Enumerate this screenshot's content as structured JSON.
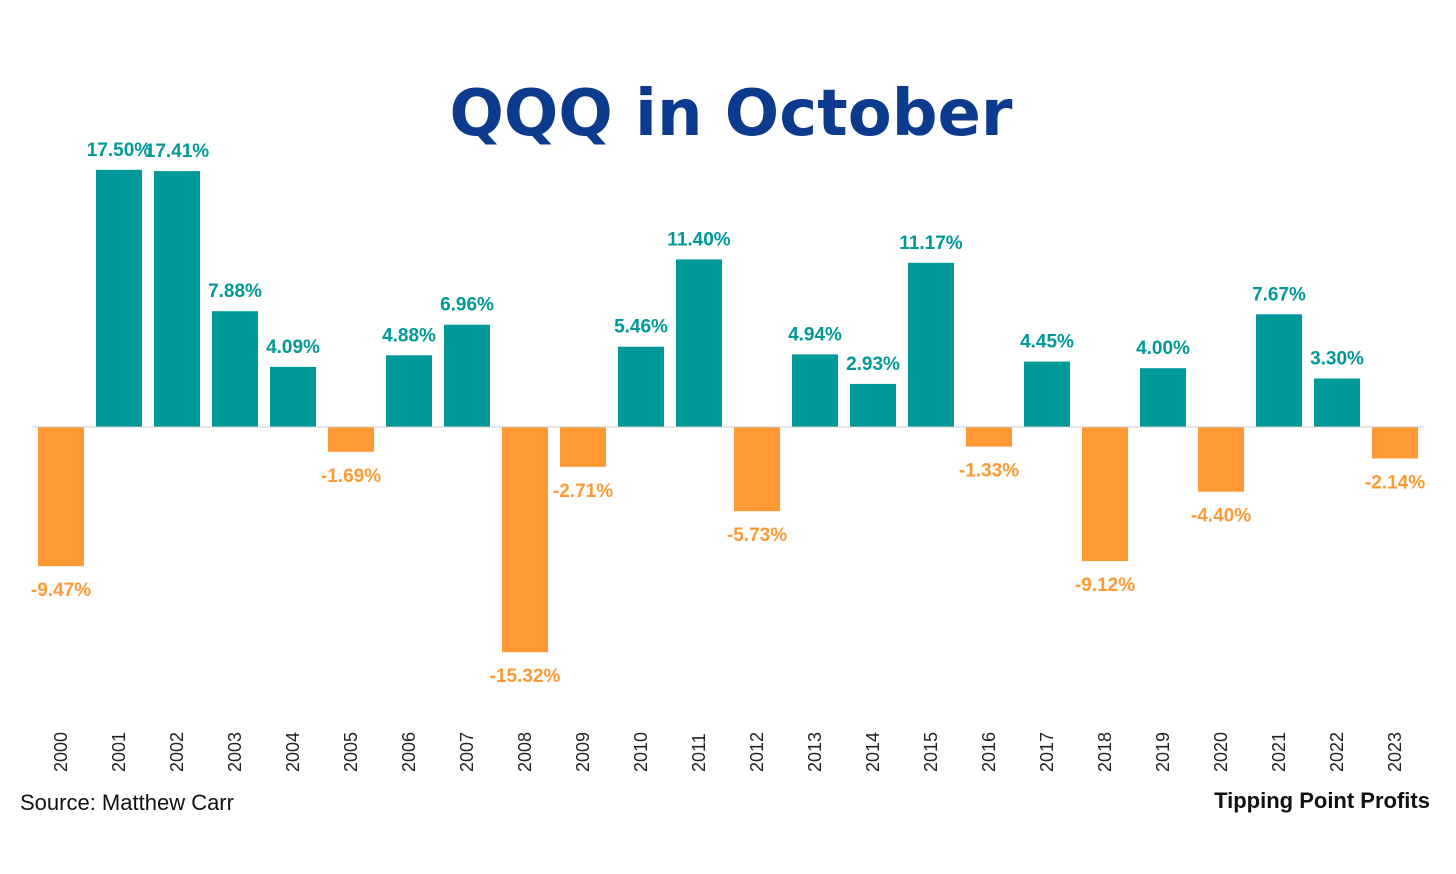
{
  "colors": {
    "positive": "#009999",
    "negative": "#FF9933",
    "title": "#0C3A8C",
    "axis": "#cccccc",
    "footer": "#111111"
  },
  "chart_data": {
    "type": "bar",
    "title": "QQQ in October",
    "xlabel": "",
    "ylabel": "",
    "ylim": [
      -20,
      20
    ],
    "grid": false,
    "legend": "none",
    "categories": [
      "2000",
      "2001",
      "2002",
      "2003",
      "2004",
      "2005",
      "2006",
      "2007",
      "2008",
      "2009",
      "2010",
      "2011",
      "2012",
      "2013",
      "2014",
      "2015",
      "2016",
      "2017",
      "2018",
      "2019",
      "2020",
      "2021",
      "2022",
      "2023"
    ],
    "values": [
      -9.47,
      17.5,
      17.41,
      7.88,
      4.09,
      -1.69,
      4.88,
      6.96,
      -15.32,
      -2.71,
      5.46,
      11.4,
      -5.73,
      4.94,
      2.93,
      11.17,
      -1.33,
      4.45,
      -9.12,
      4.0,
      -4.4,
      7.67,
      3.3,
      -2.14
    ],
    "data_labels": [
      "-9.47%",
      "17.50%",
      "17.41%",
      "7.88%",
      "4.09%",
      "-1.69%",
      "4.88%",
      "6.96%",
      "-15.32%",
      "-2.71%",
      "5.46%",
      "11.40%",
      "-5.73%",
      "4.94%",
      "2.93%",
      "11.17%",
      "-1.33%",
      "4.45%",
      "-9.12%",
      "4.00%",
      "-4.40%",
      "7.67%",
      "3.30%",
      "-2.14%"
    ]
  },
  "footer": {
    "source": "Source: Matthew Carr",
    "brand": "Tipping Point Profits"
  }
}
